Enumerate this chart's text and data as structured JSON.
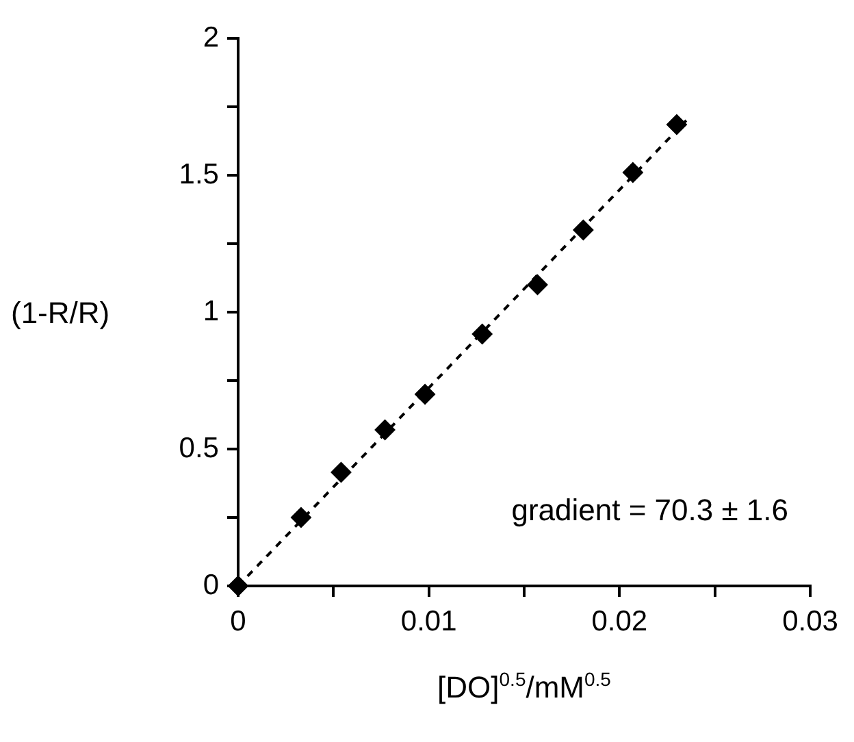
{
  "chart_data": {
    "type": "scatter",
    "xlabel": "[DO]$^{0.5}$/mM$^{0.5}$",
    "ylabel": "(1-R/R)",
    "annotations": [
      "gradient = 70.3 ± 1.6"
    ],
    "xlim": [
      0,
      0.03
    ],
    "xticks": [
      0,
      {
        "value": 0.005,
        "label": null
      },
      0.01,
      {
        "value": 0.015,
        "label": null
      },
      0.02,
      {
        "value": 0.025,
        "label": null
      },
      0.03
    ],
    "ylim": [
      0,
      2
    ],
    "yticks": [
      0,
      {
        "value": 0.25,
        "label": null
      },
      0.5,
      {
        "value": 0.75,
        "label": null
      },
      1,
      {
        "value": 1.25,
        "label": null
      },
      1.5,
      {
        "value": 1.75,
        "label": null
      },
      2
    ],
    "legend": false,
    "series": [
      {
        "type": "line",
        "color": "#000000",
        "line_style": "dashed",
        "marker": "none",
        "x": [
          0,
          0.0235
        ],
        "values": [
          0,
          1.7
        ]
      },
      {
        "type": "scatter",
        "color": "#000000",
        "marker": "diamond",
        "x": [
          0,
          0.0033,
          0.0054,
          0.0077,
          0.0098,
          0.0128,
          0.0157,
          0.0181,
          0.0207,
          0.023
        ],
        "values": [
          0,
          0.25,
          0.415,
          0.57,
          0.7,
          0.92,
          1.1,
          1.3,
          1.51,
          1.685
        ]
      }
    ]
  }
}
